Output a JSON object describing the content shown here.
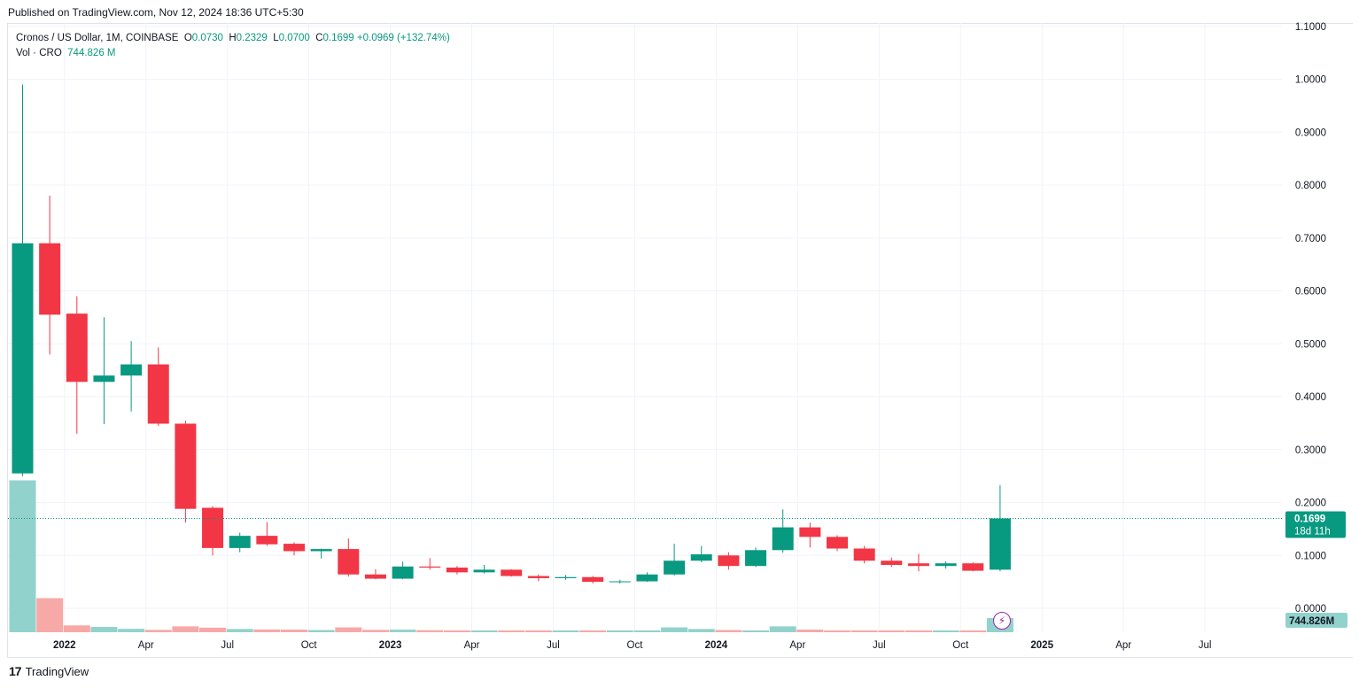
{
  "header": {
    "published": "Published on TradingView.com, Nov 12, 2024 18:36 UTC+5:30"
  },
  "legend": {
    "symbol": "Cronos / US Dollar, 1M, COINBASE",
    "o_label": "O",
    "o_value": "0.0730",
    "h_label": "H",
    "h_value": "0.2329",
    "l_label": "L",
    "l_value": "0.0700",
    "c_label": "C",
    "c_value": "0.1699",
    "change": "+0.0969 (+132.74%)",
    "vol_label": "Vol · CRO",
    "vol_value": "744.826 M"
  },
  "brand": {
    "logo": "17",
    "name": "TradingView"
  },
  "badges": {
    "price": "0.1699",
    "countdown": "18d 11h",
    "volume": "744.826M"
  },
  "colors": {
    "up": "#089981",
    "down": "#f23645",
    "vol_up": "#92d2cc",
    "vol_down": "#f7a9a7",
    "grid": "#f0f3fa",
    "axis_text": "#131722",
    "lightning": "#9c27b0"
  },
  "chart_data": {
    "type": "candlestick",
    "title": "Cronos / US Dollar, 1M, COINBASE",
    "interval": "1M",
    "ylim": [
      0.0,
      1.1
    ],
    "y_ticks": [
      "0.0000",
      "0.1000",
      "0.2000",
      "0.3000",
      "0.4000",
      "0.5000",
      "0.6000",
      "0.7000",
      "0.8000",
      "0.9000",
      "1.0000",
      "1.1000"
    ],
    "x_ticks": [
      "2022",
      "Apr",
      "Jul",
      "Oct",
      "2023",
      "Apr",
      "Jul",
      "Oct",
      "2024",
      "Apr",
      "Jul",
      "Oct",
      "2025",
      "Apr",
      "Jul"
    ],
    "last_price": 0.1699,
    "grid": true,
    "candles": [
      {
        "month": "2021-11",
        "o": 0.255,
        "h": 0.99,
        "l": 0.25,
        "c": 0.69,
        "vol": 0.245
      },
      {
        "month": "2021-12",
        "o": 0.69,
        "h": 0.78,
        "l": 0.48,
        "c": 0.555,
        "vol": 0.055
      },
      {
        "month": "2022-01",
        "o": 0.557,
        "h": 0.59,
        "l": 0.33,
        "c": 0.428,
        "vol": 0.011
      },
      {
        "month": "2022-02",
        "o": 0.428,
        "h": 0.55,
        "l": 0.348,
        "c": 0.44,
        "vol": 0.0085
      },
      {
        "month": "2022-03",
        "o": 0.44,
        "h": 0.505,
        "l": 0.372,
        "c": 0.461,
        "vol": 0.0055
      },
      {
        "month": "2022-04",
        "o": 0.461,
        "h": 0.493,
        "l": 0.345,
        "c": 0.349,
        "vol": 0.0038
      },
      {
        "month": "2022-05",
        "o": 0.349,
        "h": 0.355,
        "l": 0.162,
        "c": 0.188,
        "vol": 0.0095
      },
      {
        "month": "2022-06",
        "o": 0.19,
        "h": 0.193,
        "l": 0.1,
        "c": 0.114,
        "vol": 0.0073
      },
      {
        "month": "2022-07",
        "o": 0.114,
        "h": 0.143,
        "l": 0.106,
        "c": 0.137,
        "vol": 0.0052
      },
      {
        "month": "2022-08",
        "o": 0.137,
        "h": 0.163,
        "l": 0.118,
        "c": 0.121,
        "vol": 0.0045
      },
      {
        "month": "2022-09",
        "o": 0.122,
        "h": 0.125,
        "l": 0.1,
        "c": 0.108,
        "vol": 0.0042
      },
      {
        "month": "2022-10",
        "o": 0.108,
        "h": 0.113,
        "l": 0.094,
        "c": 0.112,
        "vol": 0.0035
      },
      {
        "month": "2022-11",
        "o": 0.112,
        "h": 0.132,
        "l": 0.06,
        "c": 0.064,
        "vol": 0.0078
      },
      {
        "month": "2022-12",
        "o": 0.064,
        "h": 0.074,
        "l": 0.055,
        "c": 0.056,
        "vol": 0.0038
      },
      {
        "month": "2023-01",
        "o": 0.056,
        "h": 0.088,
        "l": 0.055,
        "c": 0.079,
        "vol": 0.0042
      },
      {
        "month": "2023-02",
        "o": 0.079,
        "h": 0.095,
        "l": 0.073,
        "c": 0.077,
        "vol": 0.0033
      },
      {
        "month": "2023-03",
        "o": 0.077,
        "h": 0.08,
        "l": 0.064,
        "c": 0.068,
        "vol": 0.0025
      },
      {
        "month": "2023-04",
        "o": 0.068,
        "h": 0.082,
        "l": 0.066,
        "c": 0.073,
        "vol": 0.002
      },
      {
        "month": "2023-05",
        "o": 0.073,
        "h": 0.074,
        "l": 0.06,
        "c": 0.061,
        "vol": 0.0016
      },
      {
        "month": "2023-06",
        "o": 0.061,
        "h": 0.064,
        "l": 0.051,
        "c": 0.057,
        "vol": 0.0018
      },
      {
        "month": "2023-07",
        "o": 0.057,
        "h": 0.063,
        "l": 0.054,
        "c": 0.059,
        "vol": 0.0014
      },
      {
        "month": "2023-08",
        "o": 0.059,
        "h": 0.061,
        "l": 0.047,
        "c": 0.05,
        "vol": 0.0015
      },
      {
        "month": "2023-09",
        "o": 0.05,
        "h": 0.054,
        "l": 0.047,
        "c": 0.051,
        "vol": 0.0012
      },
      {
        "month": "2023-10",
        "o": 0.051,
        "h": 0.068,
        "l": 0.05,
        "c": 0.064,
        "vol": 0.0017
      },
      {
        "month": "2023-11",
        "o": 0.064,
        "h": 0.122,
        "l": 0.062,
        "c": 0.09,
        "vol": 0.0078
      },
      {
        "month": "2023-12",
        "o": 0.09,
        "h": 0.118,
        "l": 0.087,
        "c": 0.102,
        "vol": 0.0052
      },
      {
        "month": "2024-01",
        "o": 0.1,
        "h": 0.106,
        "l": 0.073,
        "c": 0.08,
        "vol": 0.0035
      },
      {
        "month": "2024-02",
        "o": 0.08,
        "h": 0.115,
        "l": 0.078,
        "c": 0.11,
        "vol": 0.0028
      },
      {
        "month": "2024-03",
        "o": 0.11,
        "h": 0.187,
        "l": 0.105,
        "c": 0.153,
        "vol": 0.0095
      },
      {
        "month": "2024-04",
        "o": 0.153,
        "h": 0.162,
        "l": 0.115,
        "c": 0.135,
        "vol": 0.0042
      },
      {
        "month": "2024-05",
        "o": 0.135,
        "h": 0.138,
        "l": 0.108,
        "c": 0.113,
        "vol": 0.0026
      },
      {
        "month": "2024-06",
        "o": 0.113,
        "h": 0.118,
        "l": 0.085,
        "c": 0.09,
        "vol": 0.0021
      },
      {
        "month": "2024-07",
        "o": 0.09,
        "h": 0.096,
        "l": 0.078,
        "c": 0.082,
        "vol": 0.0016
      },
      {
        "month": "2024-08",
        "o": 0.085,
        "h": 0.103,
        "l": 0.07,
        "c": 0.08,
        "vol": 0.0023
      },
      {
        "month": "2024-09",
        "o": 0.08,
        "h": 0.089,
        "l": 0.075,
        "c": 0.085,
        "vol": 0.0013
      },
      {
        "month": "2024-10",
        "o": 0.085,
        "h": 0.087,
        "l": 0.07,
        "c": 0.071,
        "vol": 0.0011
      },
      {
        "month": "2024-11",
        "o": 0.073,
        "h": 0.2329,
        "l": 0.07,
        "c": 0.1699,
        "vol": 0.0228
      }
    ]
  }
}
